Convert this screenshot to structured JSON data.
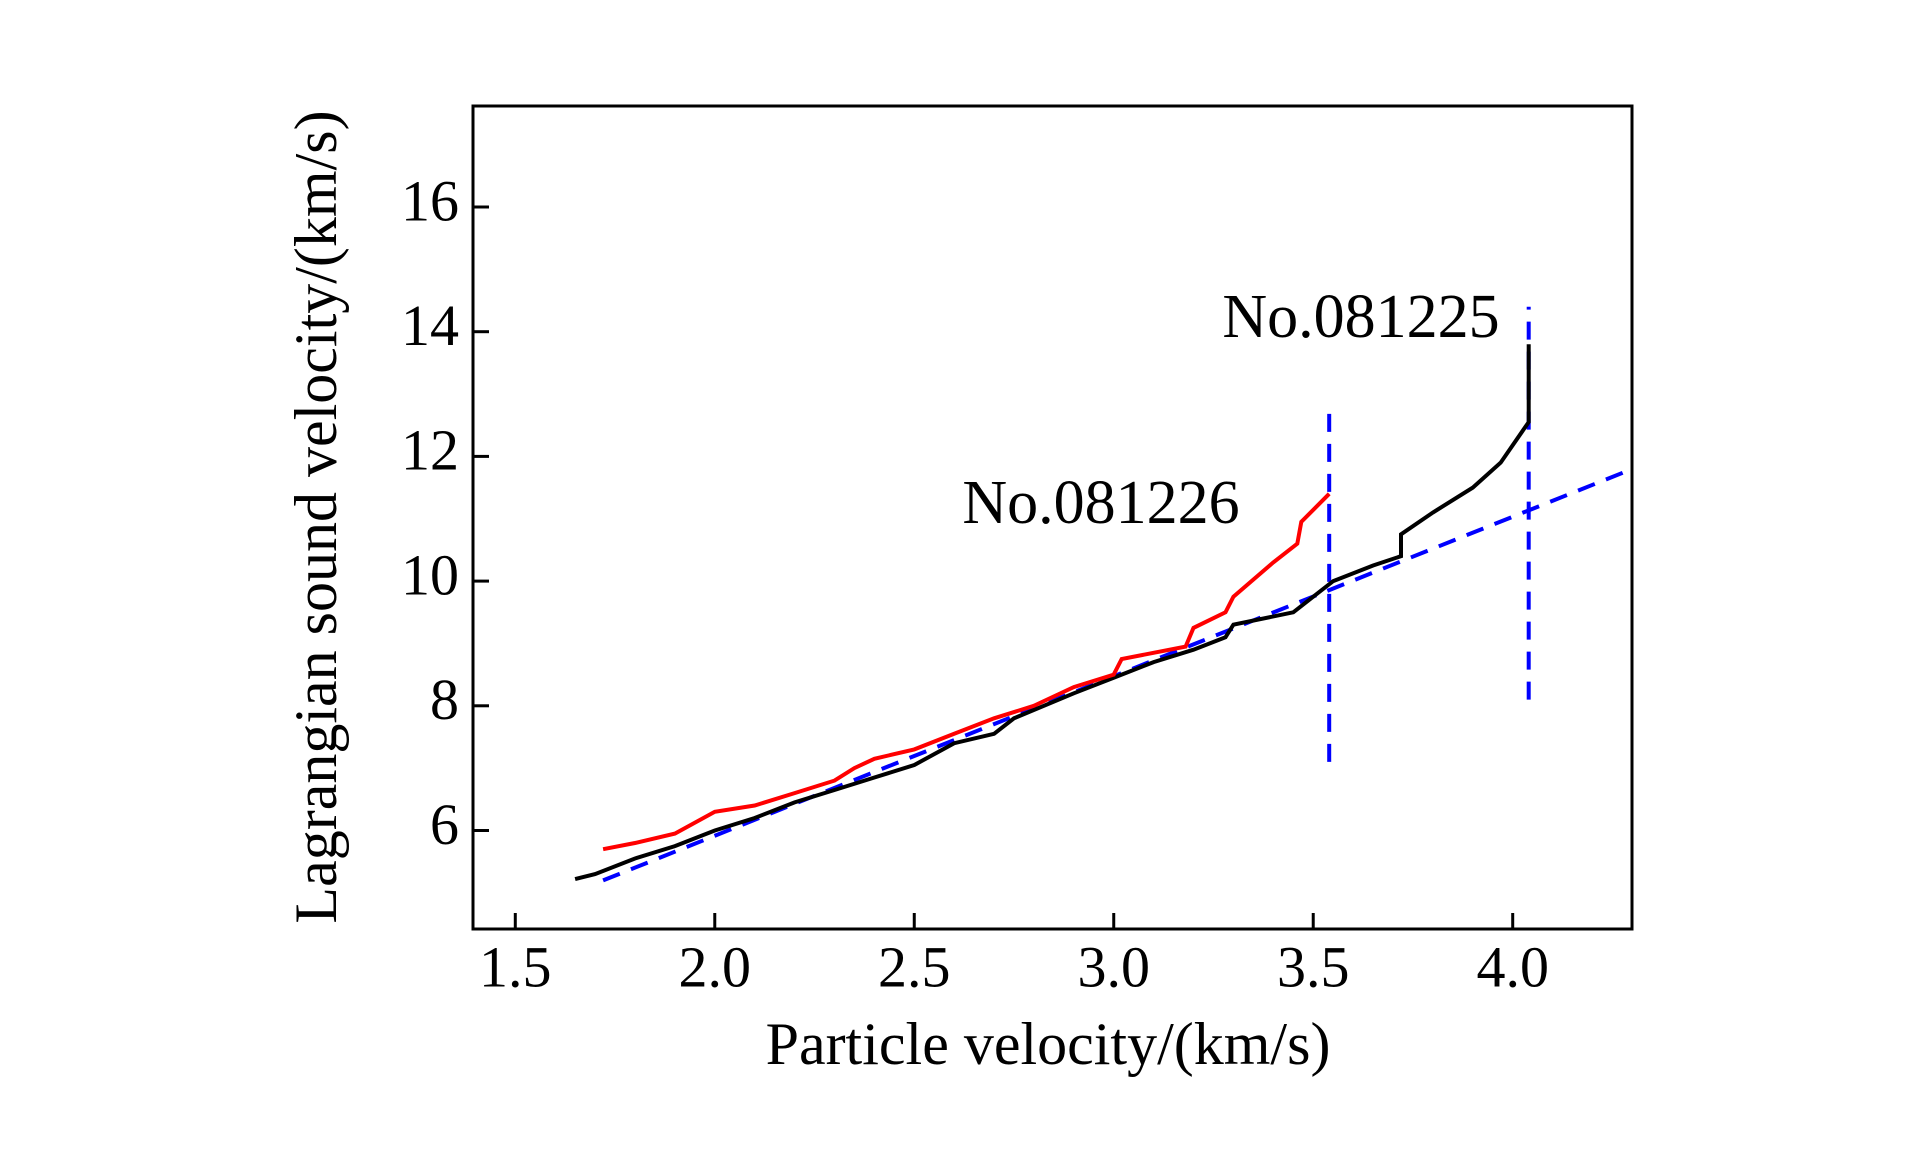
{
  "chart_data": {
    "type": "line",
    "xlabel": "Particle velocity/(km/s)",
    "ylabel": "Lagrangian sound velocity/(km/s)",
    "xlim": [
      1.394,
      4.299
    ],
    "ylim": [
      4.42,
      17.62
    ],
    "xticks": [
      {
        "value": 1.5,
        "label": "1.5"
      },
      {
        "value": 2.0,
        "label": "2.0"
      },
      {
        "value": 2.5,
        "label": "2.5"
      },
      {
        "value": 3.0,
        "label": "3.0"
      },
      {
        "value": 3.5,
        "label": "3.5"
      },
      {
        "value": 4.0,
        "label": "4.0"
      }
    ],
    "yticks": [
      6,
      8,
      10,
      12,
      14,
      16
    ],
    "series": [
      {
        "name": "No.081225",
        "color": "#000000",
        "x": [
          1.65,
          1.7,
          1.8,
          1.9,
          2.0,
          2.1,
          2.2,
          2.3,
          2.4,
          2.5,
          2.6,
          2.7,
          2.75,
          2.9,
          3.0,
          3.1,
          3.2,
          3.28,
          3.3,
          3.45,
          3.55,
          3.65,
          3.72,
          3.72,
          3.8,
          3.9,
          3.97,
          4.04,
          4.04
        ],
        "values": [
          5.22,
          5.3,
          5.55,
          5.75,
          6.0,
          6.2,
          6.45,
          6.65,
          6.85,
          7.05,
          7.4,
          7.55,
          7.8,
          8.2,
          8.45,
          8.7,
          8.9,
          9.1,
          9.3,
          9.5,
          10.0,
          10.25,
          10.4,
          10.75,
          11.1,
          11.5,
          11.9,
          12.55,
          13.8
        ]
      },
      {
        "name": "No.081226",
        "color": "#ff0000",
        "x": [
          1.72,
          1.8,
          1.9,
          2.0,
          2.1,
          2.2,
          2.3,
          2.35,
          2.4,
          2.5,
          2.6,
          2.7,
          2.8,
          2.9,
          3.0,
          3.02,
          3.1,
          3.18,
          3.2,
          3.28,
          3.3,
          3.4,
          3.46,
          3.47,
          3.54
        ],
        "values": [
          5.7,
          5.8,
          5.95,
          6.3,
          6.4,
          6.6,
          6.8,
          7.0,
          7.15,
          7.3,
          7.55,
          7.8,
          8.0,
          8.3,
          8.5,
          8.75,
          8.85,
          8.95,
          9.25,
          9.5,
          9.75,
          10.3,
          10.6,
          10.95,
          11.4
        ]
      }
    ],
    "reference_lines": [
      {
        "color": "#0000ff",
        "x": [
          1.72,
          4.3
        ],
        "values": [
          5.2,
          11.8
        ]
      },
      {
        "color": "#0000ff",
        "x": [
          3.54,
          3.54
        ],
        "values": [
          7.1,
          12.8
        ]
      },
      {
        "color": "#0000ff",
        "x": [
          4.04,
          4.04
        ],
        "values": [
          8.1,
          14.4
        ]
      }
    ]
  }
}
